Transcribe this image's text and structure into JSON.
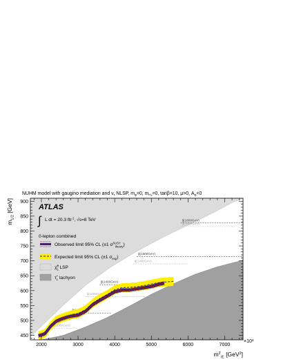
{
  "chart_data": {
    "type": "line",
    "title": "NUHM model with gaugino mediation and ṽτ NLSP, mφ=0, mH₂=0, tanβ=10, μ>0, Aφ<0",
    "title_parts": {
      "prefix": "NUHM model with gaugino mediation and ",
      "nu_symbol": "ν",
      "nu_sub": "τ",
      "mid1": " NLSP, m",
      "mid1_sub": "φ",
      "mid2": "=0, m",
      "mid2_sub": "H₂",
      "mid3": "=0, tanβ=10, μ>0, A",
      "mid3_sub": "φ",
      "suffix": "<0"
    },
    "xlabel": "m²τ̃L [GeV²]",
    "xlabel_main": "m",
    "xlabel_sup": "2",
    "xlabel_sub": "τ̃L",
    "xlabel_unit": " [GeV",
    "xlabel_unit_sup": "2",
    "xlabel_unit_end": "]",
    "x_multiplier": "×10³",
    "ylabel": "m1/2 [GeV]",
    "ylabel_main": "m",
    "ylabel_sub": "1/2",
    "ylabel_unit": " [GeV]",
    "xlim": [
      1700,
      7500
    ],
    "ylim": [
      435,
      910
    ],
    "xticks": [
      2000,
      3000,
      4000,
      5000,
      6000,
      7000
    ],
    "xtick_labels": [
      "2000",
      "3000",
      "4000",
      "5000",
      "6000",
      "7000"
    ],
    "yticks": [
      450,
      500,
      550,
      600,
      650,
      700,
      750,
      800,
      850,
      900
    ],
    "ytick_labels": [
      "450",
      "500",
      "550",
      "600",
      "650",
      "700",
      "750",
      "800",
      "850",
      "900"
    ],
    "experiment": "ATLAS",
    "lumi_text": "L dt = 20.3 fb⁻¹,  √s=8 TeV",
    "lumi_prefix": "L dt = 20.3 fb",
    "lumi_sup": "-1",
    "lumi_sep": ",  ",
    "lumi_sqrt": "√",
    "lumi_energy": "s=8 TeV",
    "analysis": "0-lepton combined",
    "legend": [
      {
        "label": "Observed limit 95% CL (±1 σtheory)",
        "main": "Observed limit 95% CL (±1 σ",
        "sup": "SUSY",
        "sub": "theory",
        "end": ")",
        "color": "#8b1a2b"
      },
      {
        "label": "Expected limit 95% CL (±1 σexp)",
        "main": "Expected limit 95% CL (±1 σ",
        "sub": "exp",
        "end": ")",
        "color": "#1f1fb4",
        "band_color": "#ffee00"
      },
      {
        "label": "χ̃⁰₁ LSP",
        "main": "χ̃",
        "sup": "0",
        "sub": "1",
        "end": " LSP",
        "color": "#dcdcdc"
      },
      {
        "label": "τ̃L tachyon",
        "main": "τ̃",
        "sub": "L",
        "end": " tachyon",
        "color": "#a0a0a0"
      }
    ],
    "gluino_contours": [
      {
        "label": "g̃(1000GeV)",
        "y": 474,
        "x_start": 2280,
        "x_end": 3000,
        "visible": false
      },
      {
        "label": "g̃(1200GeV)",
        "y": 525,
        "x_start": 2800,
        "x_end": 3900,
        "visible": true
      },
      {
        "label": "g̃(1300GeV)",
        "y": 580,
        "x_start": 3200,
        "x_end": 5000,
        "visible": false
      },
      {
        "label": "g̃(1400GeV)",
        "y": 620,
        "x_start": 3580,
        "x_end": 5400,
        "visible": true
      },
      {
        "label": "g̃(1400GeV)",
        "y": 690,
        "x_start": 4500,
        "x_end": 6000,
        "visible": false
      },
      {
        "label": "g̃(1600GeV)",
        "y": 714,
        "x_start": 4600,
        "x_end": 7500,
        "visible": true
      },
      {
        "label": "g̃(1600GeV)",
        "y": 815,
        "x_start": 5800,
        "x_end": 7300,
        "visible": false
      },
      {
        "label": "g̃(1800GeV)",
        "y": 827,
        "x_start": 5800,
        "x_end": 7500,
        "visible": true
      }
    ],
    "lsp_boundary": {
      "x": [
        1700,
        2500,
        3200,
        3900,
        4600,
        5300,
        6000,
        6700,
        7200,
        7500
      ],
      "y": [
        445,
        540,
        618,
        680,
        732,
        778,
        820,
        862,
        895,
        910
      ]
    },
    "tachyon_boundary": {
      "x": [
        2000,
        2600,
        3200,
        3800,
        4400,
        5000,
        5600,
        6200,
        6800,
        7500
      ],
      "y": [
        435,
        450,
        478,
        510,
        548,
        588,
        623,
        655,
        680,
        702
      ]
    },
    "series": [
      {
        "name": "Observed limit 95% CL",
        "x": [
          1920,
          2000,
          2100,
          2250,
          2400,
          2550,
          2700,
          2850,
          3000,
          3200,
          3400,
          3600,
          3800,
          4000,
          4200,
          4400,
          4600,
          4800,
          5000,
          5200,
          5350
        ],
        "y": [
          449,
          451,
          456,
          480,
          497,
          505,
          511,
          515,
          518,
          530,
          553,
          568,
          582,
          596,
          602,
          602,
          606,
          610,
          614,
          621,
          625
        ]
      },
      {
        "name": "Expected limit 95% CL",
        "x": [
          1920,
          2000,
          2100,
          2250,
          2400,
          2550,
          2700,
          2850,
          3000,
          3200,
          3400,
          3600,
          3800,
          4000,
          4200,
          4400,
          4600,
          4800,
          5000,
          5200,
          5400,
          5600
        ],
        "y": [
          449,
          452,
          457,
          482,
          500,
          508,
          514,
          520,
          523,
          536,
          558,
          574,
          587,
          603,
          610,
          611,
          613,
          617,
          622,
          627,
          629,
          631
        ]
      }
    ]
  }
}
